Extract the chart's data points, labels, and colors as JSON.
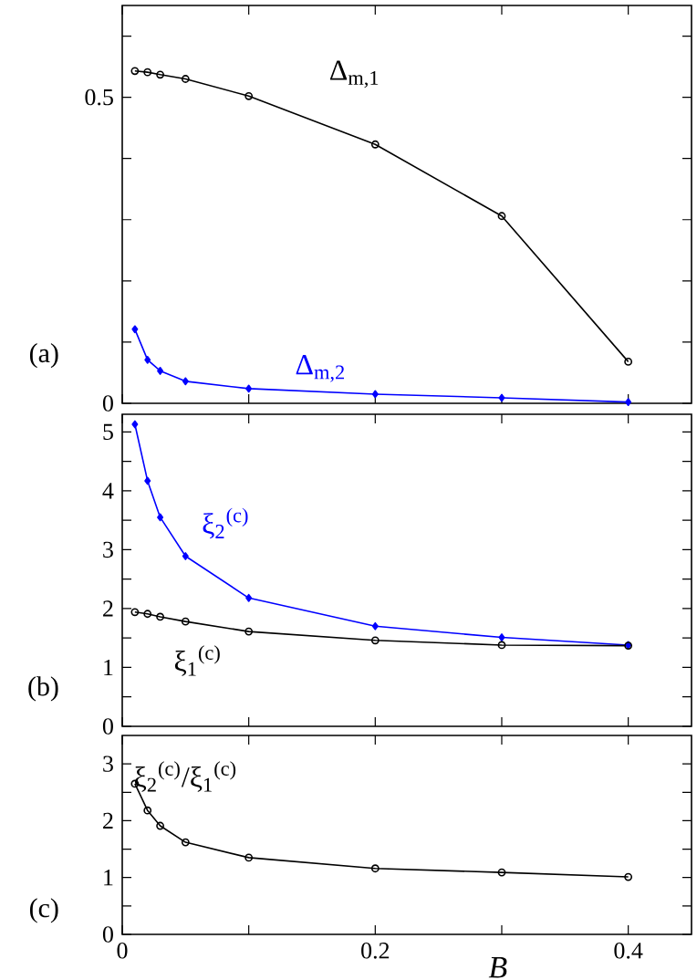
{
  "chart_data": [
    {
      "type": "line",
      "x": [
        0.01,
        0.02,
        0.03,
        0.05,
        0.1,
        0.2,
        0.3,
        0.4
      ],
      "xlim": [
        0,
        0.45
      ],
      "ylim": [
        0,
        0.65
      ],
      "xticks": [
        0,
        0.1,
        0.2,
        0.3,
        0.4
      ],
      "yticks": [
        0,
        {
          "value": 0.1,
          "label": null
        },
        {
          "value": 0.2,
          "label": null
        },
        {
          "value": 0.3,
          "label": null
        },
        {
          "value": 0.4,
          "label": null
        },
        0.5,
        {
          "value": 0.6,
          "label": null
        }
      ],
      "tick_labels": "y",
      "annotations": [
        "(a)"
      ],
      "series": [
        {
          "name": "Δ$_{m,1}$",
          "color": "#000000",
          "marker": "circle",
          "values": [
            0.543,
            0.541,
            0.537,
            0.53,
            0.502,
            0.423,
            0.306,
            0.068
          ]
        },
        {
          "name": "Δ$_{m,2}$",
          "color": "#0000ff",
          "marker": "diamond",
          "values": [
            0.121,
            0.071,
            0.053,
            0.036,
            0.024,
            0.015,
            0.009,
            0.002
          ]
        }
      ]
    },
    {
      "type": "line",
      "x": [
        0.01,
        0.02,
        0.03,
        0.05,
        0.1,
        0.2,
        0.3,
        0.4
      ],
      "xlim": [
        0,
        0.45
      ],
      "ylim": [
        0,
        5.3
      ],
      "xticks": [
        0,
        0.1,
        0.2,
        0.3,
        0.4
      ],
      "yticks": [
        0,
        {
          "value": 0.5,
          "label": null
        },
        1,
        {
          "value": 1.5,
          "label": null
        },
        2,
        {
          "value": 2.5,
          "label": null
        },
        3,
        {
          "value": 3.5,
          "label": null
        },
        4,
        {
          "value": 4.5,
          "label": null
        },
        5
      ],
      "tick_labels": "y",
      "annotations": [
        "(b)"
      ],
      "series": [
        {
          "name": "ξ$_{2}$$^{(c)}$",
          "color": "#0000ff",
          "marker": "diamond",
          "values": [
            5.13,
            4.17,
            3.55,
            2.89,
            2.18,
            1.7,
            1.51,
            1.38
          ]
        },
        {
          "name": "ξ$_{1}$$^{(c)}$",
          "color": "#000000",
          "marker": "circle",
          "values": [
            1.94,
            1.91,
            1.86,
            1.78,
            1.61,
            1.46,
            1.38,
            1.37
          ]
        }
      ]
    },
    {
      "type": "line",
      "x": [
        0.01,
        0.02,
        0.03,
        0.05,
        0.1,
        0.2,
        0.3,
        0.4
      ],
      "xlim": [
        0,
        0.45
      ],
      "ylim": [
        0,
        3.5
      ],
      "xticks": [
        0,
        {
          "value": 0.1,
          "label": null
        },
        0.2,
        {
          "value": 0.3,
          "label": null
        },
        0.4
      ],
      "yticks": [
        0,
        {
          "value": 0.5,
          "label": null
        },
        1,
        {
          "value": 1.5,
          "label": null
        },
        2,
        {
          "value": 2.5,
          "label": null
        },
        3
      ],
      "xlabel": "B",
      "annotations": [
        "(c)"
      ],
      "series": [
        {
          "name": "ξ$_{2}$$^{(c)}$/ξ$_{1}$$^{(c)}$",
          "color": "#000000",
          "marker": "circle",
          "values": [
            2.65,
            2.18,
            1.91,
            1.62,
            1.35,
            1.16,
            1.09,
            1.01
          ]
        }
      ]
    }
  ]
}
